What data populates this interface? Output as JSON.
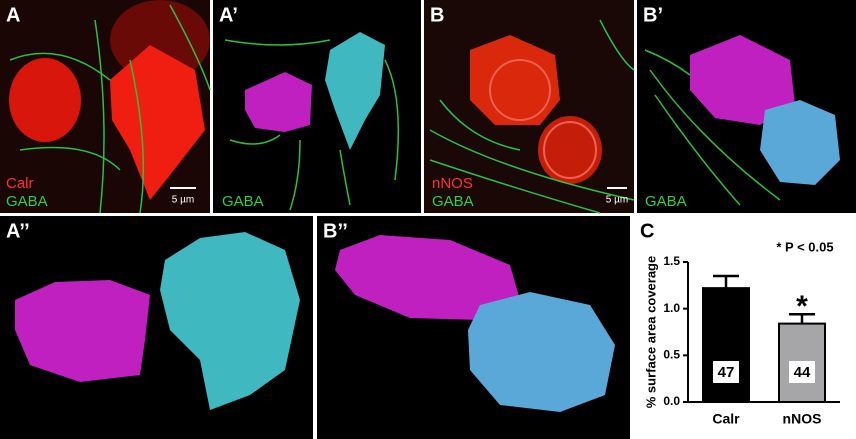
{
  "panels": [
    {
      "label": "A",
      "stain1": "Calr",
      "stain2": "GABA",
      "scale": "5 µm"
    },
    {
      "label": "A’",
      "stain2": "GABA"
    },
    {
      "label": "B",
      "stain1": "nNOS",
      "stain2": "GABA",
      "scale": "5 µm"
    },
    {
      "label": "B’",
      "stain2": "GABA"
    },
    {
      "label": "A’’"
    },
    {
      "label": "B’’"
    },
    {
      "label": "C"
    }
  ],
  "chart_data": {
    "type": "bar",
    "ylabel": "% surface area coverage",
    "annotation": "* P < 0.05",
    "significance": "*",
    "categories": [
      "Calr",
      "nNOS"
    ],
    "values": [
      1.22,
      0.84
    ],
    "errors": [
      0.13,
      0.1
    ],
    "n_labels": [
      "47",
      "44"
    ],
    "colors": [
      "#000000",
      "#a6a6a8"
    ],
    "ylim": [
      0,
      1.5
    ],
    "yticks": [
      {
        "value": 0,
        "label": "0.0"
      },
      0.5,
      {
        "value": 1,
        "label": "1.0"
      },
      1.5
    ]
  }
}
